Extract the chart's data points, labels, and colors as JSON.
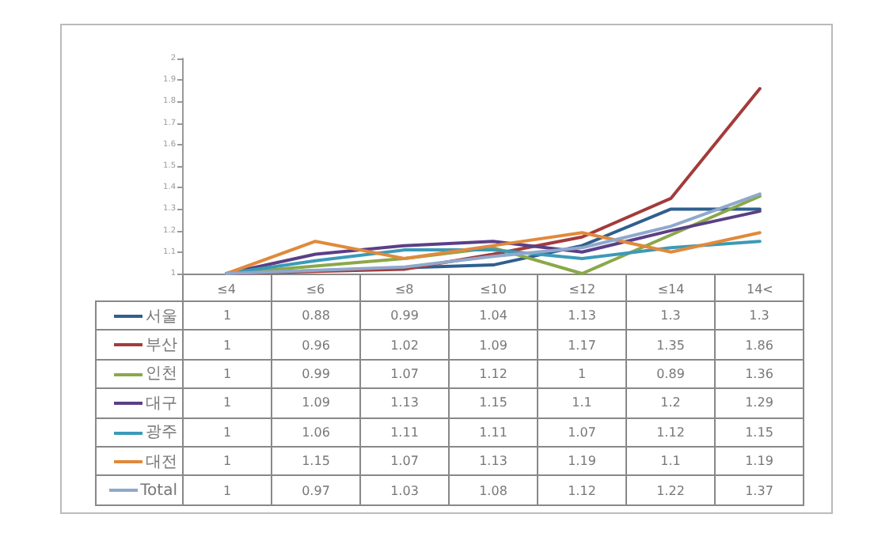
{
  "chart_data": {
    "type": "line",
    "categories": [
      "≤4",
      "≤6",
      "≤8",
      "≤10",
      "≤12",
      "≤14",
      "14<"
    ],
    "series": [
      {
        "name": "서울",
        "color": "#2f5f8f",
        "values": [
          1,
          null,
          null,
          1.04,
          1.13,
          1.3,
          1.3
        ],
        "value_labels": [
          "1",
          "0.88",
          "0.99",
          "1.04",
          "1.13",
          "1.3",
          "1.3"
        ]
      },
      {
        "name": "부산",
        "color": "#a33b3b",
        "values": [
          1,
          null,
          1.02,
          1.09,
          1.17,
          1.35,
          1.86
        ],
        "value_labels": [
          "1",
          "0.96",
          "1.02",
          "1.09",
          "1.17",
          "1.35",
          "1.86"
        ]
      },
      {
        "name": "인천",
        "color": "#8aa84a",
        "values": [
          1,
          null,
          1.07,
          1.12,
          1,
          null,
          1.36
        ],
        "value_labels": [
          "1",
          "0.99",
          "1.07",
          "1.12",
          "1",
          "0.89",
          "1.36"
        ]
      },
      {
        "name": "대구",
        "color": "#5b3f86",
        "values": [
          1,
          1.09,
          1.13,
          1.15,
          1.1,
          1.2,
          1.29
        ],
        "value_labels": [
          "1",
          "1.09",
          "1.13",
          "1.15",
          "1.1",
          "1.2",
          "1.29"
        ]
      },
      {
        "name": "광주",
        "color": "#3b9ab8",
        "values": [
          1,
          1.06,
          1.11,
          1.11,
          1.07,
          1.12,
          1.15
        ],
        "value_labels": [
          "1",
          "1.06",
          "1.11",
          "1.11",
          "1.07",
          "1.12",
          "1.15"
        ]
      },
      {
        "name": "대전",
        "color": "#e08a3c",
        "values": [
          1,
          1.15,
          1.07,
          1.13,
          1.19,
          1.1,
          1.19
        ],
        "value_labels": [
          "1",
          "1.15",
          "1.07",
          "1.13",
          "1.19",
          "1.1",
          "1.19"
        ]
      },
      {
        "name": "Total",
        "color": "#8fa8cc",
        "values": [
          1,
          null,
          1.03,
          1.08,
          1.12,
          1.22,
          1.37
        ],
        "value_labels": [
          "1",
          "0.97",
          "1.03",
          "1.08",
          "1.12",
          "1.22",
          "1.37"
        ]
      }
    ],
    "ylim": [
      1,
      2
    ],
    "yticks": [
      1,
      1.1,
      1.2,
      1.3,
      1.4,
      1.5,
      1.6,
      1.7,
      1.8,
      1.9,
      2
    ],
    "grid": false,
    "legend": "bottom",
    "marker": "none",
    "line_style": "solid"
  }
}
